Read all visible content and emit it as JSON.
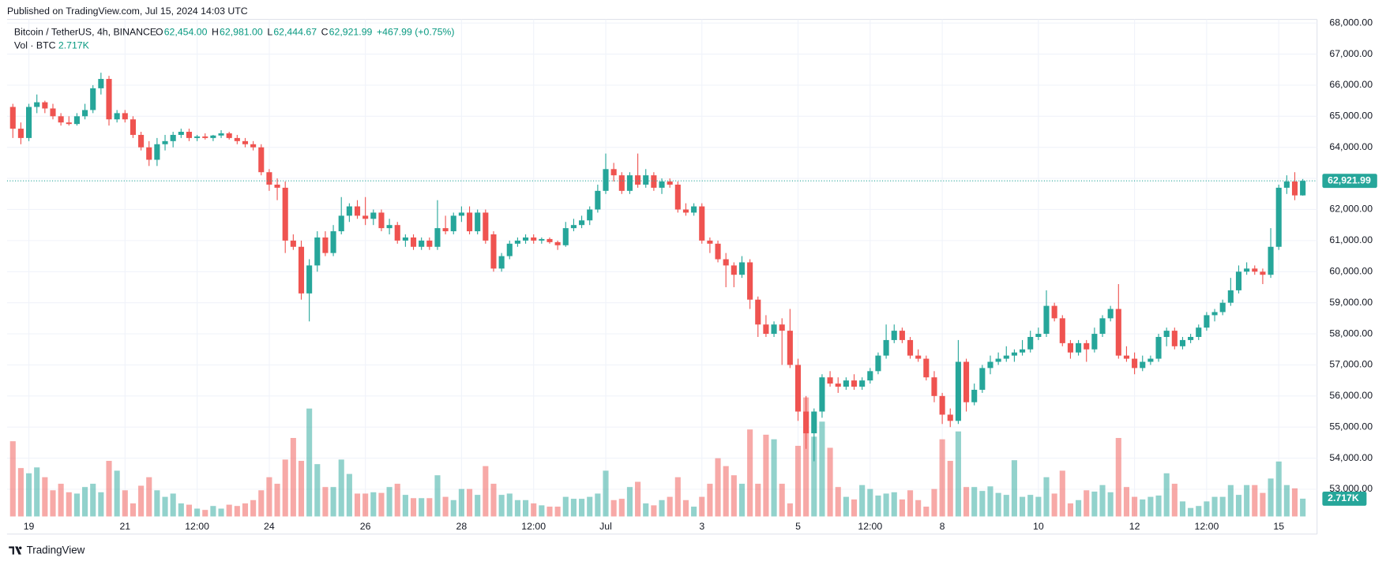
{
  "header": {
    "published": "Published on TradingView.com, Jul 15, 2024 14:03 UTC",
    "brand": "TradingView"
  },
  "legend": {
    "symbol": "Bitcoin / TetherUS, 4h, BINANCE",
    "fields": [
      {
        "key": "O",
        "value": "62,454.00"
      },
      {
        "key": "H",
        "value": "62,981.00"
      },
      {
        "key": "L",
        "value": "62,444.67"
      },
      {
        "key": "C",
        "value": "62,921.99"
      }
    ],
    "change": "+467.99 (+0.75%)",
    "volume_name": "Vol · BTC",
    "volume_value": "2.717K"
  },
  "chart_data": {
    "type": "candlestick",
    "up_color": "#26a69a",
    "down_color": "#ef5350",
    "grid": true,
    "ylim": [
      52125,
      68115
    ],
    "yticks": [
      {
        "value": 53000,
        "label": "53,000.00"
      },
      {
        "value": 54000,
        "label": "54,000.00"
      },
      {
        "value": 55000,
        "label": "55,000.00"
      },
      {
        "value": 56000,
        "label": "56,000.00"
      },
      {
        "value": 57000,
        "label": "57,000.00"
      },
      {
        "value": 58000,
        "label": "58,000.00"
      },
      {
        "value": 59000,
        "label": "59,000.00"
      },
      {
        "value": 60000,
        "label": "60,000.00"
      },
      {
        "value": 61000,
        "label": "61,000.00"
      },
      {
        "value": 62000,
        "label": "62,000.00"
      },
      {
        "value": 63000,
        "label": "63,000.00"
      },
      {
        "value": 64000,
        "label": "64,000.00"
      },
      {
        "value": 65000,
        "label": "65,000.00"
      },
      {
        "value": 66000,
        "label": "66,000.00"
      },
      {
        "value": 67000,
        "label": "67,000.00"
      },
      {
        "value": 68000,
        "label": "68,000.00"
      }
    ],
    "xticks": [
      {
        "value": 2,
        "label": "19"
      },
      {
        "value": 14,
        "label": "21"
      },
      {
        "value": 23,
        "label": "12:00"
      },
      {
        "value": 32,
        "label": "24"
      },
      {
        "value": 44,
        "label": "26"
      },
      {
        "value": 56,
        "label": "28"
      },
      {
        "value": 65,
        "label": "12:00"
      },
      {
        "value": 74,
        "label": "Jul"
      },
      {
        "value": 86,
        "label": "3"
      },
      {
        "value": 98,
        "label": "5"
      },
      {
        "value": 107,
        "label": "12:00"
      },
      {
        "value": 116,
        "label": "8"
      },
      {
        "value": 128,
        "label": "10"
      },
      {
        "value": 140,
        "label": "12"
      },
      {
        "value": 149,
        "label": "12:00"
      },
      {
        "value": 158,
        "label": "15"
      }
    ],
    "last_price": {
      "value": 62921.99,
      "label": "62,921.99"
    },
    "volume_label": {
      "value": 2.717,
      "label": "2.717K"
    },
    "vlim": [
      0,
      76
    ],
    "open": [
      65300,
      64600,
      64300,
      65300,
      65450,
      65250,
      65000,
      64800,
      64750,
      65000,
      65200,
      65900,
      66200,
      64900,
      65100,
      64900,
      64400,
      64000,
      63600,
      64100,
      64200,
      64400,
      64500,
      64300,
      64350,
      64300,
      64380,
      64450,
      64300,
      64200,
      64100,
      64000,
      63200,
      62800,
      62700,
      61000,
      60800,
      59300,
      60200,
      61100,
      60600,
      61300,
      61800,
      62100,
      61800,
      61700,
      61900,
      61400,
      61500,
      61000,
      61100,
      60800,
      61000,
      60800,
      61400,
      61300,
      61800,
      61900,
      61300,
      61900,
      61200,
      60100,
      60500,
      60900,
      61000,
      61100,
      61000,
      61050,
      60950,
      60850,
      61400,
      61500,
      61650,
      62000,
      62600,
      63300,
      63100,
      62600,
      63100,
      62800,
      63100,
      62700,
      62900,
      62800,
      62000,
      61900,
      62100,
      61000,
      60900,
      60400,
      60200,
      59900,
      60300,
      59100,
      58300,
      58000,
      58300,
      58100,
      57000,
      55500,
      54800,
      55500,
      56600,
      56400,
      56300,
      56500,
      56300,
      56500,
      56800,
      57300,
      57800,
      58100,
      57800,
      57300,
      57200,
      56600,
      56000,
      55400,
      55200,
      57100,
      55800,
      56200,
      56900,
      57100,
      57200,
      57300,
      57400,
      57500,
      57900,
      58000,
      58900,
      58500,
      57700,
      57400,
      57700,
      57500,
      58000,
      58500,
      58800,
      57300,
      57200,
      56900,
      57100,
      57200,
      57900,
      58100,
      57600,
      57800,
      57900,
      58200,
      58600,
      58700,
      59000,
      59400,
      60000,
      60100,
      60000,
      59900,
      60800,
      62700,
      62900,
      62454
    ],
    "high": [
      65400,
      64800,
      65400,
      65700,
      65500,
      65400,
      65100,
      65000,
      65100,
      65400,
      66000,
      66400,
      66300,
      65200,
      65200,
      65000,
      64500,
      64200,
      64300,
      64400,
      64500,
      64600,
      64600,
      64400,
      64450,
      64400,
      64550,
      64500,
      64400,
      64300,
      64200,
      64100,
      63300,
      63000,
      62900,
      61200,
      61000,
      60400,
      61300,
      61300,
      61500,
      62400,
      62200,
      62300,
      62400,
      62000,
      62000,
      61700,
      61600,
      61200,
      61200,
      61100,
      61100,
      62300,
      61800,
      61900,
      62100,
      62100,
      62000,
      62000,
      61300,
      60600,
      61000,
      61100,
      61200,
      61200,
      61100,
      61100,
      61000,
      61600,
      61700,
      61800,
      62100,
      62800,
      63800,
      63500,
      63200,
      63200,
      63800,
      63300,
      63200,
      63000,
      63000,
      62900,
      62200,
      62200,
      62200,
      61100,
      61000,
      60600,
      60300,
      60500,
      60400,
      59200,
      58600,
      58400,
      58500,
      58800,
      57200,
      56000,
      55600,
      56700,
      56800,
      56600,
      56600,
      56700,
      56600,
      56900,
      57400,
      58300,
      58300,
      58200,
      57900,
      57500,
      57300,
      56800,
      56100,
      55600,
      57800,
      57200,
      56400,
      57000,
      57300,
      57400,
      57600,
      57500,
      57800,
      58100,
      58200,
      59400,
      59000,
      58600,
      57800,
      57800,
      57800,
      58200,
      58600,
      58900,
      59600,
      57600,
      57400,
      57300,
      57300,
      58000,
      58200,
      58200,
      57900,
      58000,
      58300,
      58700,
      58800,
      59100,
      59800,
      60200,
      60300,
      60200,
      60100,
      61400,
      62800,
      63100,
      63200,
      62981
    ],
    "low": [
      64300,
      64100,
      64200,
      65100,
      65100,
      64900,
      64700,
      64700,
      64700,
      64900,
      65100,
      65700,
      64700,
      64800,
      64800,
      64300,
      63900,
      63400,
      63400,
      63900,
      64000,
      64300,
      64200,
      64200,
      64250,
      64200,
      64300,
      64250,
      64100,
      64000,
      63900,
      63100,
      62600,
      62300,
      60600,
      60700,
      59100,
      58400,
      60000,
      60500,
      60500,
      61200,
      61600,
      61700,
      61500,
      61500,
      61300,
      61200,
      60900,
      60800,
      60700,
      60700,
      60700,
      60700,
      61200,
      61200,
      61600,
      61200,
      61200,
      60900,
      60000,
      60000,
      60400,
      60800,
      60900,
      60900,
      60900,
      60900,
      60700,
      60800,
      61300,
      61400,
      61500,
      61900,
      62500,
      62900,
      62500,
      62500,
      62700,
      62700,
      62600,
      62500,
      62700,
      61900,
      61800,
      61800,
      60900,
      60600,
      60300,
      59500,
      59500,
      59800,
      58800,
      57900,
      57900,
      57900,
      57000,
      56900,
      55200,
      54300,
      53900,
      55300,
      56300,
      56100,
      56200,
      56200,
      56200,
      56400,
      56700,
      57200,
      57700,
      57700,
      57200,
      57100,
      56500,
      55800,
      55100,
      55000,
      55100,
      55500,
      55700,
      56100,
      56700,
      57000,
      57100,
      57100,
      57300,
      57400,
      57800,
      57900,
      58400,
      57600,
      57200,
      57300,
      57100,
      57400,
      57900,
      58400,
      57200,
      57100,
      56700,
      56800,
      57000,
      57100,
      57600,
      57500,
      57500,
      57700,
      57800,
      58100,
      58400,
      58600,
      58900,
      59300,
      59900,
      59900,
      59600,
      59800,
      60700,
      62500,
      62300,
      62444.67
    ],
    "close": [
      64600,
      64300,
      65300,
      65450,
      65250,
      65000,
      64800,
      64750,
      65000,
      65200,
      65900,
      66200,
      64900,
      65100,
      64900,
      64400,
      64000,
      63600,
      64100,
      64200,
      64400,
      64500,
      64300,
      64350,
      64300,
      64380,
      64450,
      64300,
      64200,
      64100,
      64000,
      63200,
      62800,
      62700,
      61000,
      60800,
      59300,
      60200,
      61100,
      60600,
      61300,
      61800,
      62100,
      61800,
      61700,
      61900,
      61400,
      61500,
      61000,
      61100,
      60800,
      61000,
      60800,
      61400,
      61300,
      61800,
      61900,
      61300,
      61900,
      61000,
      60100,
      60500,
      60900,
      61000,
      61100,
      61000,
      61050,
      60950,
      60850,
      61400,
      61500,
      61650,
      62000,
      62600,
      63300,
      63100,
      62600,
      63100,
      62800,
      63100,
      62700,
      62900,
      62800,
      62000,
      61900,
      62100,
      61000,
      60900,
      60400,
      60200,
      59900,
      60300,
      59100,
      58300,
      58000,
      58300,
      58100,
      57000,
      55500,
      54800,
      55500,
      56600,
      56400,
      56300,
      56500,
      56300,
      56500,
      56800,
      57300,
      57800,
      58100,
      57800,
      57300,
      57200,
      56600,
      56000,
      55400,
      55200,
      57100,
      55800,
      56200,
      56900,
      57100,
      57200,
      57300,
      57400,
      57500,
      57900,
      58000,
      58900,
      58500,
      57700,
      57400,
      57700,
      57500,
      58000,
      58500,
      58800,
      57300,
      57200,
      56900,
      57100,
      57200,
      57900,
      58100,
      57600,
      57800,
      57900,
      58200,
      58600,
      58700,
      59000,
      59400,
      60000,
      60100,
      60000,
      59900,
      60800,
      62700,
      62900,
      62454,
      62921.99
    ],
    "volume": [
      11.5,
      7.4,
      6.6,
      7.5,
      6,
      4,
      5,
      3.7,
      3.5,
      4.5,
      5,
      3.7,
      8.5,
      7,
      4,
      2,
      4.7,
      6,
      4,
      3,
      3.5,
      2,
      1.8,
      1.2,
      1,
      1.6,
      1.2,
      1.8,
      1.6,
      2,
      2.5,
      4,
      6,
      5,
      8.7,
      12,
      8.5,
      16.5,
      8,
      4.5,
      4.5,
      8.7,
      6.5,
      3.5,
      3.5,
      3.7,
      3.6,
      4.5,
      5,
      3.3,
      2.8,
      2.8,
      2.8,
      6.3,
      3,
      2.5,
      4.2,
      4.2,
      3.3,
      7.7,
      5,
      3.3,
      3.5,
      2.5,
      2.5,
      2,
      1.7,
      1.5,
      1.5,
      3,
      2.7,
      2.7,
      3,
      3.5,
      7,
      2.5,
      2.7,
      4.5,
      5.3,
      2,
      1.7,
      2.5,
      3,
      6,
      2.5,
      1.5,
      3,
      5,
      8.9,
      7.7,
      6.3,
      5,
      13.3,
      5,
      12.5,
      11.8,
      5,
      2,
      10.8,
      18.2,
      12.2,
      14.5,
      10.5,
      4.5,
      3,
      2.6,
      4.8,
      4.2,
      3.2,
      3.5,
      3.7,
      2.6,
      4,
      2.5,
      1.5,
      4.2,
      11.8,
      8.5,
      13,
      4.5,
      4.5,
      3.9,
      4.6,
      3.6,
      3.3,
      8.6,
      3,
      3.3,
      3,
      6,
      3.5,
      7,
      2,
      2.5,
      4,
      3.8,
      4.8,
      3.7,
      12,
      4.5,
      3,
      2.6,
      3,
      3.2,
      6.6,
      5,
      2.3,
      1.3,
      1.6,
      2.3,
      3,
      3,
      4.8,
      3.3,
      4.8,
      4.8,
      3.6,
      5.8,
      8.4,
      4.8,
      4.3,
      2.717
    ]
  }
}
